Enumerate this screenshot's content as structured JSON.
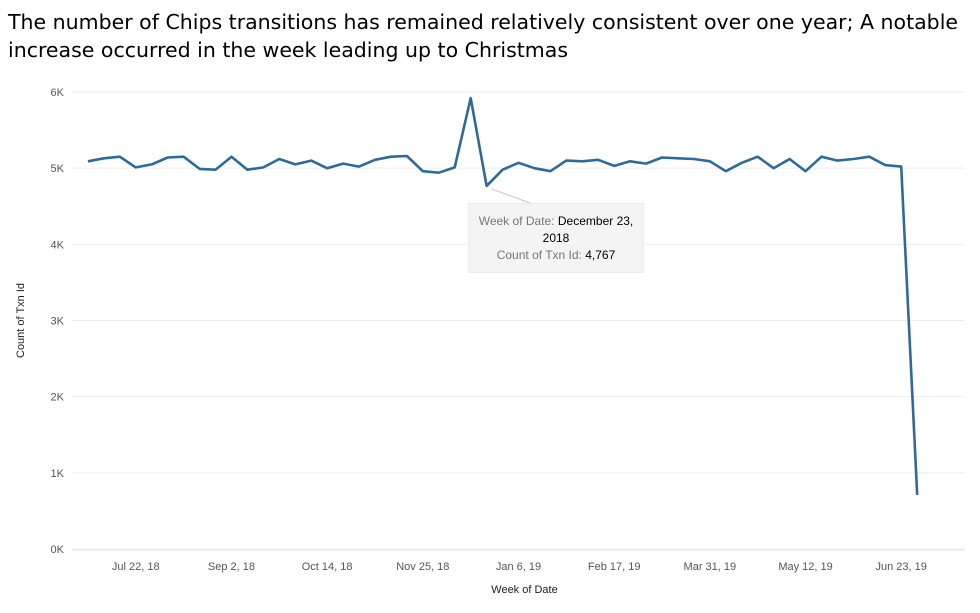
{
  "title": "The number of Chips transitions has remained relatively consistent over one year; A notable increase occurred in the week leading up to Christmas",
  "tooltip": {
    "date_label": "Week of Date:",
    "date_value": "December 23, 2018",
    "count_label": "Count of Txn Id:",
    "count_value": "4,767"
  },
  "colors": {
    "line": "#2f6a9a",
    "grid": "#eeeeee",
    "tooltip_bg": "#f4f4f4"
  },
  "chart_data": {
    "type": "line",
    "xlabel": "Week of Date",
    "ylabel": "Count of Txn Id",
    "ylim": [
      0,
      6000
    ],
    "y_ticks": [
      0,
      1000,
      2000,
      3000,
      4000,
      5000,
      6000
    ],
    "y_tick_labels": [
      "0K",
      "1K",
      "2K",
      "3K",
      "4K",
      "5K",
      "6K"
    ],
    "x_tick_labels": [
      "Jul 22, 18",
      "Sep 2, 18",
      "Oct 14, 18",
      "Nov 25, 18",
      "Jan 6, 19",
      "Feb 17, 19",
      "Mar 31, 19",
      "May 12, 19",
      "Jun 23, 19"
    ],
    "x_tick_dates": [
      "2018-07-22",
      "2018-09-02",
      "2018-10-14",
      "2018-11-25",
      "2019-01-06",
      "2019-02-17",
      "2019-03-31",
      "2019-05-12",
      "2019-06-23"
    ],
    "x_range": [
      "2018-06-24",
      "2019-07-21"
    ],
    "grid": true,
    "series": [
      {
        "x": [
          "2018-07-01",
          "2018-07-08",
          "2018-07-15",
          "2018-07-22",
          "2018-07-29",
          "2018-08-05",
          "2018-08-12",
          "2018-08-19",
          "2018-08-26",
          "2018-09-02",
          "2018-09-09",
          "2018-09-16",
          "2018-09-23",
          "2018-09-30",
          "2018-10-07",
          "2018-10-14",
          "2018-10-21",
          "2018-10-28",
          "2018-11-04",
          "2018-11-11",
          "2018-11-18",
          "2018-11-25",
          "2018-12-02",
          "2018-12-09",
          "2018-12-16",
          "2018-12-23",
          "2018-12-30",
          "2019-01-06",
          "2019-01-13",
          "2019-01-20",
          "2019-01-27",
          "2019-02-03",
          "2019-02-10",
          "2019-02-17",
          "2019-02-24",
          "2019-03-03",
          "2019-03-10",
          "2019-03-17",
          "2019-03-24",
          "2019-03-31",
          "2019-04-07",
          "2019-04-14",
          "2019-04-21",
          "2019-04-28",
          "2019-05-05",
          "2019-05-12",
          "2019-05-19",
          "2019-05-26",
          "2019-06-02",
          "2019-06-09",
          "2019-06-16",
          "2019-06-23",
          "2019-06-30"
        ],
        "values": [
          5090,
          5130,
          5150,
          5010,
          5050,
          5140,
          5150,
          4990,
          4980,
          5150,
          4980,
          5010,
          5120,
          5050,
          5100,
          5000,
          5060,
          5020,
          5110,
          5150,
          5160,
          4960,
          4940,
          5010,
          5920,
          4767,
          4980,
          5070,
          5000,
          4960,
          5100,
          5090,
          5110,
          5030,
          5090,
          5060,
          5140,
          5130,
          5120,
          5090,
          4960,
          5070,
          5150,
          5000,
          5120,
          4960,
          5150,
          5100,
          5120,
          5150,
          5040,
          5020,
          710
        ]
      }
    ],
    "highlight": {
      "x": "2018-12-23",
      "value": 4767
    }
  }
}
